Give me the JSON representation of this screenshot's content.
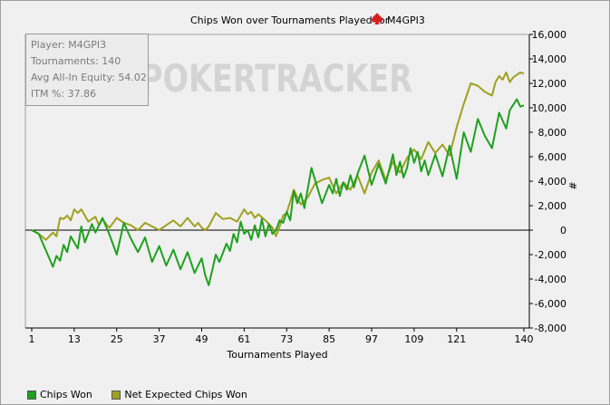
{
  "chart_data": {
    "type": "line",
    "title": "Chips Won over Tournaments Played for",
    "player_name": "M4GPI3",
    "xlabel": "Tournaments Played",
    "ylabel": "#",
    "xlim": [
      1,
      140
    ],
    "ylim": [
      -8000,
      16000
    ],
    "x_ticks": [
      "1",
      "13",
      "25",
      "37",
      "49",
      "61",
      "73",
      "85",
      "97",
      "109",
      "121",
      "140"
    ],
    "y_ticks": [
      "16,000",
      "14,000",
      "12,000",
      "10,000",
      "8,000",
      "6,000",
      "4,000",
      "2,000",
      "0",
      "-2,000",
      "-4,000",
      "-6,000",
      "-8,000"
    ],
    "grid": false,
    "watermark": "POKERTRACKER",
    "info_box": {
      "player": "Player: M4GPI3",
      "tournaments": "Tournaments: 140",
      "avg_allin_equity": "Avg All-In Equity: 54.02",
      "itm": "ITM %: 37.86"
    },
    "colors": {
      "chips_won": "#1fa01f",
      "net_expected": "#a0a020",
      "zero_line": "#000000",
      "logo_spade": "#d62020"
    },
    "series": [
      {
        "name": "Chips Won",
        "x": [
          1,
          3,
          7,
          8,
          9,
          10,
          11,
          12,
          14,
          15,
          16,
          18,
          19,
          21,
          23,
          25,
          27,
          29,
          31,
          33,
          35,
          37,
          39,
          41,
          43,
          45,
          47,
          49,
          50,
          51,
          53,
          54,
          56,
          57,
          58,
          59,
          60,
          61,
          62,
          63,
          64,
          65,
          66,
          67,
          68,
          69,
          70,
          71,
          72,
          73,
          74,
          75,
          76,
          77,
          78,
          80,
          83,
          85,
          86,
          87,
          88,
          89,
          90,
          91,
          92,
          93,
          95,
          97,
          99,
          101,
          103,
          104,
          105,
          106,
          107,
          108,
          109,
          110,
          111,
          112,
          113,
          115,
          117,
          119,
          121,
          123,
          125,
          127,
          129,
          131,
          133,
          135,
          136,
          138,
          139,
          140
        ],
        "y": [
          0,
          -300,
          -3000,
          -2100,
          -2500,
          -1200,
          -1800,
          -500,
          -1500,
          300,
          -1000,
          500,
          -200,
          1000,
          -400,
          -2000,
          600,
          -700,
          -1800,
          -600,
          -2600,
          -1300,
          -2900,
          -1600,
          -3200,
          -1800,
          -3500,
          -2300,
          -3700,
          -4500,
          -2000,
          -2600,
          -1100,
          -1700,
          -300,
          -1000,
          700,
          -300,
          0,
          -800,
          400,
          -600,
          900,
          -500,
          500,
          -300,
          0,
          800,
          600,
          1500,
          800,
          3200,
          2200,
          3000,
          1800,
          5100,
          2200,
          3700,
          3000,
          4200,
          2800,
          3900,
          3300,
          4500,
          3500,
          4600,
          6100,
          3700,
          5400,
          3800,
          6200,
          4500,
          5600,
          4300,
          5100,
          6700,
          5500,
          6400,
          4800,
          5700,
          4500,
          6200,
          4400,
          6900,
          4200,
          8000,
          6400,
          9100,
          7700,
          6700,
          9600,
          8300,
          9800,
          10700,
          10100,
          10200
        ]
      },
      {
        "name": "Net Expected Chips Won",
        "x": [
          1,
          3,
          5,
          7,
          8,
          9,
          10,
          11,
          12,
          13,
          14,
          15,
          17,
          19,
          20,
          21,
          22,
          23,
          25,
          27,
          29,
          31,
          33,
          35,
          37,
          39,
          41,
          43,
          45,
          47,
          48,
          49,
          50,
          51,
          53,
          55,
          57,
          59,
          61,
          62,
          63,
          64,
          65,
          67,
          69,
          70,
          71,
          72,
          73,
          75,
          77,
          79,
          81,
          83,
          85,
          87,
          89,
          91,
          93,
          95,
          97,
          99,
          101,
          103,
          105,
          107,
          109,
          111,
          113,
          115,
          117,
          119,
          121,
          123,
          125,
          127,
          129,
          131,
          132,
          133,
          134,
          135,
          136,
          137,
          138,
          139,
          140
        ],
        "y": [
          0,
          -300,
          -800,
          -200,
          -500,
          1000,
          900,
          1200,
          800,
          1700,
          1400,
          1700,
          700,
          1100,
          400,
          900,
          500,
          200,
          1000,
          600,
          400,
          0,
          600,
          300,
          0,
          400,
          800,
          300,
          1000,
          300,
          600,
          200,
          0,
          300,
          1400,
          900,
          1000,
          700,
          1700,
          1300,
          1500,
          1000,
          1300,
          800,
          200,
          -500,
          300,
          1200,
          1400,
          3300,
          2100,
          2700,
          3800,
          4100,
          4300,
          3000,
          3900,
          3300,
          4500,
          3000,
          4700,
          5700,
          4100,
          5600,
          4700,
          5900,
          6600,
          5800,
          7200,
          6300,
          7000,
          6100,
          8400,
          10300,
          12000,
          11800,
          11300,
          11000,
          12100,
          12600,
          12300,
          12900,
          12100,
          12500,
          12700,
          12900,
          12800
        ]
      }
    ]
  }
}
